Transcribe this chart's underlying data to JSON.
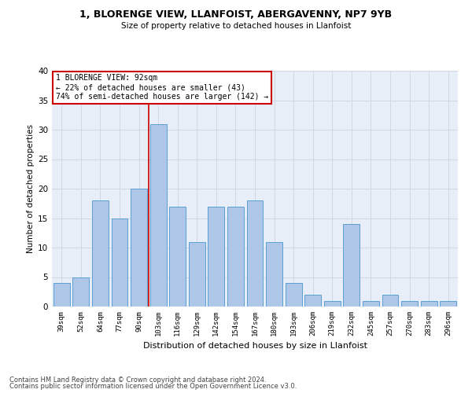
{
  "title_line1": "1, BLORENGE VIEW, LLANFOIST, ABERGAVENNY, NP7 9YB",
  "title_line2": "Size of property relative to detached houses in Llanfoist",
  "xlabel": "Distribution of detached houses by size in Llanfoist",
  "ylabel": "Number of detached properties",
  "categories": [
    "39sqm",
    "52sqm",
    "64sqm",
    "77sqm",
    "90sqm",
    "103sqm",
    "116sqm",
    "129sqm",
    "142sqm",
    "154sqm",
    "167sqm",
    "180sqm",
    "193sqm",
    "206sqm",
    "219sqm",
    "232sqm",
    "245sqm",
    "257sqm",
    "270sqm",
    "283sqm",
    "296sqm"
  ],
  "values": [
    4,
    5,
    18,
    15,
    20,
    31,
    17,
    11,
    17,
    17,
    18,
    11,
    4,
    2,
    1,
    14,
    1,
    2,
    1,
    1,
    1
  ],
  "bar_color": "#aec6e8",
  "bar_edge_color": "#5a9fd4",
  "property_line_x": 4.5,
  "annotation_text": "1 BLORENGE VIEW: 92sqm\n← 22% of detached houses are smaller (43)\n74% of semi-detached houses are larger (142) →",
  "annotation_box_color": "#ffffff",
  "annotation_box_edge_color": "#cc0000",
  "vline_color": "#cc0000",
  "grid_color": "#d0d8e8",
  "background_color": "#e8eef8",
  "ylim": [
    0,
    40
  ],
  "yticks": [
    0,
    5,
    10,
    15,
    20,
    25,
    30,
    35,
    40
  ],
  "footer_line1": "Contains HM Land Registry data © Crown copyright and database right 2024.",
  "footer_line2": "Contains public sector information licensed under the Open Government Licence v3.0."
}
